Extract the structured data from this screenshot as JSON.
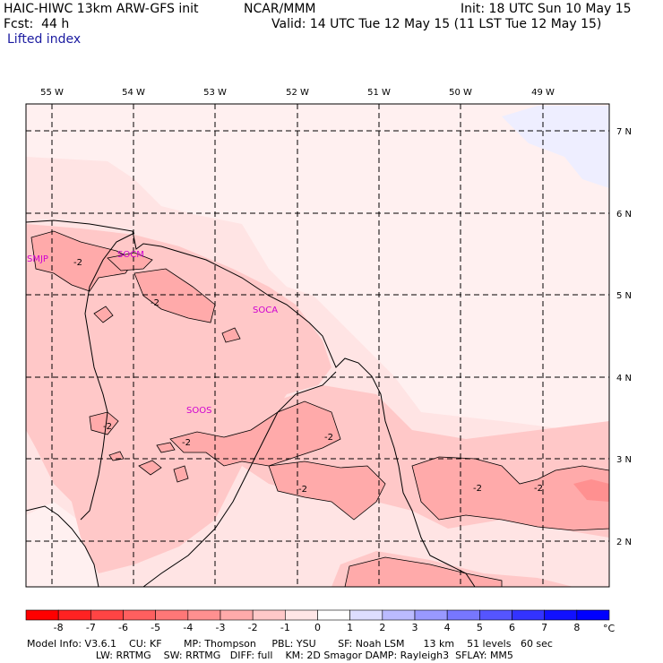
{
  "header": {
    "model_title": "HAIC-HIWC 13km ARW-GFS init",
    "org": "NCAR/MMM",
    "init": "Init: 18 UTC Sun 10 May 15",
    "fcst": "Fcst:  44 h",
    "valid": "Valid: 14 UTC Tue 12 May 15 (11 LST Tue 12 May 15)",
    "field": "Lifted index"
  },
  "map": {
    "lon_labels": [
      "55 W",
      "54 W",
      "53 W",
      "52 W",
      "51 W",
      "50 W",
      "49 W"
    ],
    "lat_labels": [
      "7 N",
      "6 N",
      "5 N",
      "4 N",
      "3 N",
      "2 N"
    ],
    "stations": [
      "SMJP",
      "SOCM",
      "SOCA",
      "SOOS"
    ],
    "contour_label": "-2"
  },
  "colorbar": {
    "ticks": [
      "-8",
      "-7",
      "-6",
      "-5",
      "-4",
      "-3",
      "-2",
      "-1",
      "0",
      "1",
      "2",
      "3",
      "4",
      "5",
      "6",
      "7",
      "8"
    ],
    "unit": "°C",
    "colors": [
      "#ff0000",
      "#ff2222",
      "#ff4444",
      "#ff5f5f",
      "#ff7777",
      "#ff9090",
      "#ffaaaa",
      "#ffc8c8",
      "#ffe6e6",
      "#ffffff",
      "#ddddff",
      "#bbbbff",
      "#9999ff",
      "#7777ff",
      "#5555ff",
      "#3333ff",
      "#1111ff",
      "#0000ff"
    ]
  },
  "footer": {
    "line1": "Model Info: V3.6.1    CU: KF       MP: Thompson     PBL: YSU       SF: Noah LSM      13 km    51 levels   60 sec",
    "line2": "                      LW: RRTMG    SW: RRTMG   DIFF: full    KM: 2D Smagor DAMP: Rayleigh3  SFLAY: MM5"
  }
}
